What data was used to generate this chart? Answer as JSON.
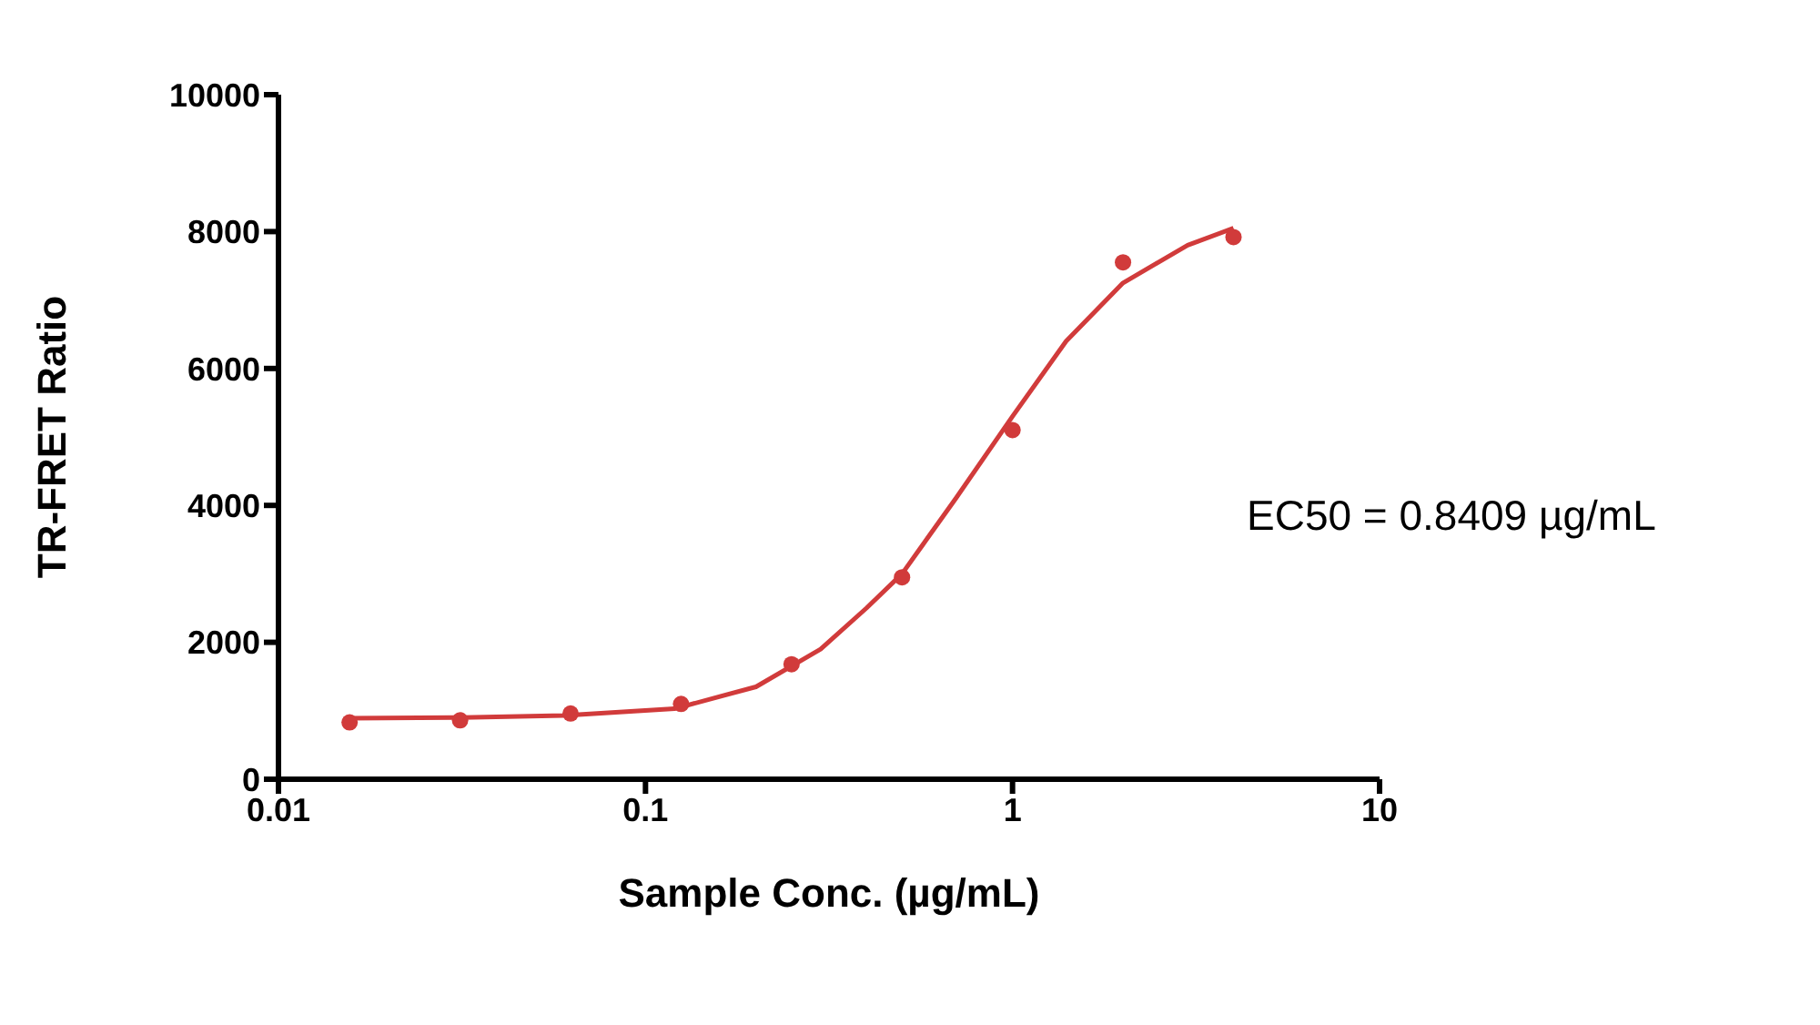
{
  "chart_data": {
    "type": "scatter",
    "xlabel": "Sample Conc. (µg/mL)",
    "ylabel": "TR-FRET Ratio",
    "log": "x",
    "xlim": [
      0.01,
      10
    ],
    "xticks": [
      0.01,
      0.1,
      1,
      10
    ],
    "ylim": [
      0,
      10000
    ],
    "yticks": [
      0,
      2000,
      4000,
      6000,
      8000,
      10000
    ],
    "grid": false,
    "legend": false,
    "marker": "circle",
    "annotations": [
      "EC50 = 0.8409 µg/mL"
    ],
    "series": [
      {
        "color": "#d13b3b",
        "x": [
          0.015625,
          0.03125,
          0.0625,
          0.125,
          0.25,
          0.5,
          1,
          2,
          4
        ],
        "values": [
          830,
          860,
          960,
          1100,
          1680,
          2950,
          5100,
          7550,
          7920
        ]
      },
      {
        "type": "line",
        "color": "#d13b3b",
        "marker": "none",
        "line_style": "solid",
        "x": [
          0.015625,
          0.03,
          0.06,
          0.12,
          0.2,
          0.3,
          0.4,
          0.5,
          0.7,
          1,
          1.4,
          2,
          3,
          4
        ],
        "values": [
          890,
          900,
          930,
          1030,
          1350,
          1900,
          2500,
          3000,
          4100,
          5300,
          6400,
          7250,
          7800,
          8050
        ]
      }
    ]
  }
}
